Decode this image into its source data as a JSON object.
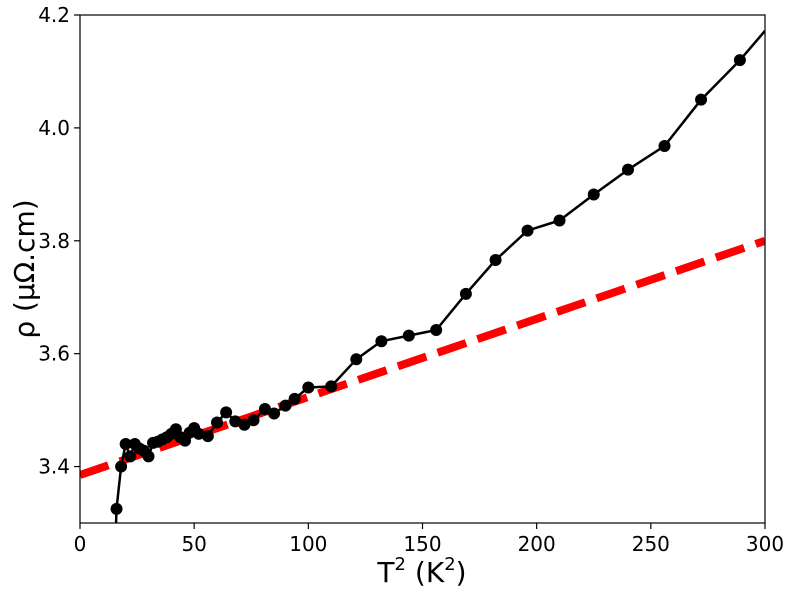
{
  "chart_data": {
    "type": "line",
    "title": "",
    "xlabel": "T",
    "xlabel_unit": "(K",
    "xlabel_sup": "2",
    "xlabel_close": ")",
    "ylabel": "ρ (μΩ.cm)",
    "xlim": [
      0,
      300
    ],
    "ylim": [
      3.3,
      4.2
    ],
    "x_ticks": [
      0,
      50,
      100,
      150,
      200,
      250,
      300
    ],
    "x_tick_labels": [
      "0",
      "50",
      "100",
      "150",
      "200",
      "250",
      "300"
    ],
    "y_ticks": [
      3.4,
      3.6,
      3.8,
      4.0,
      4.2
    ],
    "y_tick_labels": [
      "3.4",
      "3.6",
      "3.8",
      "4.0",
      "4.2"
    ],
    "grid": false,
    "series": [
      {
        "color": "#000000",
        "marker": "circle",
        "x": [
          16,
          18,
          20,
          22,
          24,
          26,
          28,
          30,
          32,
          34,
          36,
          38,
          40,
          42,
          44,
          46,
          48,
          50,
          52,
          56,
          60,
          64,
          68,
          72,
          76,
          81,
          85,
          90,
          94,
          100,
          110,
          121,
          132,
          144,
          156,
          169,
          182,
          196,
          210,
          225,
          240,
          256,
          272,
          289
        ],
        "y": [
          3.325,
          3.4,
          3.44,
          3.418,
          3.44,
          3.432,
          3.428,
          3.418,
          3.442,
          3.444,
          3.448,
          3.452,
          3.458,
          3.466,
          3.452,
          3.446,
          3.46,
          3.468,
          3.458,
          3.454,
          3.478,
          3.496,
          3.48,
          3.474,
          3.482,
          3.502,
          3.494,
          3.508,
          3.52,
          3.54,
          3.542,
          3.59,
          3.622,
          3.632,
          3.642,
          3.706,
          3.766,
          3.818,
          3.836,
          3.882,
          3.926,
          3.968,
          4.05,
          4.12
        ]
      }
    ],
    "lead_in": {
      "x": [
        15,
        16
      ],
      "y": [
        3.2,
        3.325
      ]
    },
    "trail_out": {
      "x": [
        289,
        300
      ],
      "y": [
        4.12,
        4.172
      ]
    },
    "fit_line": {
      "color": "#ff0000",
      "style": "dashed",
      "x": [
        0,
        300
      ],
      "y": [
        3.385,
        3.8
      ]
    }
  }
}
